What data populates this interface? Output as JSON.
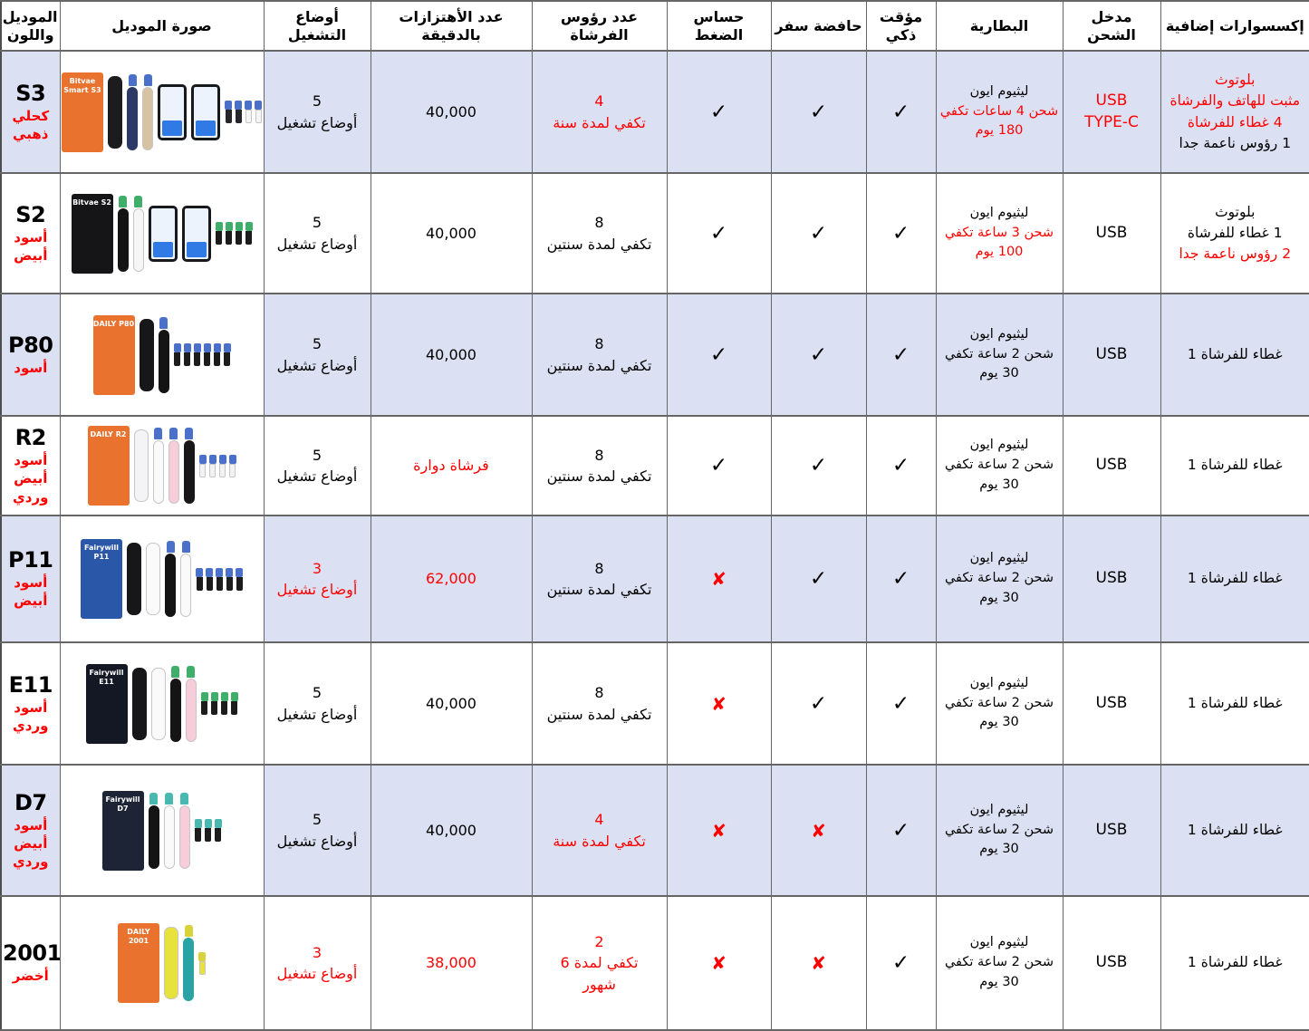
{
  "colors": {
    "red": "#ff0000",
    "row_shade": "#dbe1f2",
    "border": "#666666",
    "header_bg": "#ffffff",
    "check": "#000000"
  },
  "symbols": {
    "yes": "✓",
    "no": "✘"
  },
  "table": {
    "headers": [
      {
        "key": "model",
        "label": "الموديل واللون"
      },
      {
        "key": "image",
        "label": "صورة الموديل"
      },
      {
        "key": "modes",
        "label": "أوضاع التشغيل"
      },
      {
        "key": "vibrations",
        "label": "عدد الأهتزازات بالدقيقة"
      },
      {
        "key": "heads",
        "label": "عدد رؤوس الفرشاة"
      },
      {
        "key": "pressure",
        "label": "حساس الضغط"
      },
      {
        "key": "travel",
        "label": "حافضة سفر"
      },
      {
        "key": "timer",
        "label": "مؤقت ذكي"
      },
      {
        "key": "battery",
        "label": "البطارية"
      },
      {
        "key": "port",
        "label": "مدخل الشحن"
      },
      {
        "key": "accessories",
        "label": "إكسسوارات إضافية"
      }
    ],
    "rows": [
      {
        "model": {
          "name": "S3",
          "colors": [
            "كحلي",
            "ذهبي"
          ]
        },
        "image": {
          "box": {
            "bg": "#e8722e",
            "label": "Bitvae Smart S3"
          },
          "cases": [
            "#1c1c1e"
          ],
          "brushes": [
            "#2d3a66",
            "#d7c3a1"
          ],
          "phones": 2,
          "bristle": "#4a70c9",
          "heads": [
            "#26262a",
            "#26262a",
            "#f5f5f5",
            "#f5f5f5"
          ]
        },
        "modes": [
          {
            "t": "5"
          },
          {
            "t": "أوضاع تشغيل"
          }
        ],
        "vibrations": [
          {
            "t": "40,000"
          }
        ],
        "heads": [
          {
            "t": "4",
            "c": "r"
          },
          {
            "t": "تكفي لمدة سنة",
            "c": "r"
          }
        ],
        "pressure": "yes",
        "travel": "yes",
        "timer": "yes",
        "battery": [
          {
            "t": "ليثيوم ايون"
          },
          {
            "t": "شحن 4 ساعات تكفي",
            "c": "r"
          },
          {
            "t": "180 يوم",
            "c": "r"
          }
        ],
        "port": [
          {
            "t": "USB",
            "c": "r"
          },
          {
            "t": "TYPE-C",
            "c": "r"
          }
        ],
        "accessories": [
          {
            "t": "بلوتوث",
            "c": "r"
          },
          {
            "t": "مثبت للهاتف والفرشاة",
            "c": "r"
          },
          {
            "t": "4 غطاء للفرشاة",
            "c": "r"
          },
          {
            "t": "1 رؤوس ناعمة جدا"
          }
        ]
      },
      {
        "model": {
          "name": "S2",
          "colors": [
            "أسود",
            "أبيض"
          ]
        },
        "image": {
          "box": {
            "bg": "#151517",
            "label": "Bitvae S2"
          },
          "cases": [],
          "brushes": [
            "#141414",
            "#f6f6f6"
          ],
          "phones": 2,
          "bristle": "#3fae6a",
          "heads": [
            "#1c1c1c",
            "#1c1c1c",
            "#1c1c1c",
            "#1c1c1c"
          ]
        },
        "modes": [
          {
            "t": "5"
          },
          {
            "t": "أوضاع تشغيل"
          }
        ],
        "vibrations": [
          {
            "t": "40,000"
          }
        ],
        "heads": [
          {
            "t": "8"
          },
          {
            "t": "تكفي لمدة سنتين"
          }
        ],
        "pressure": "yes",
        "travel": "yes",
        "timer": "yes",
        "battery": [
          {
            "t": "ليثيوم ايون"
          },
          {
            "t": "شحن 3 ساعة تكفي",
            "c": "r"
          },
          {
            "t": "100 يوم",
            "c": "r"
          }
        ],
        "port": [
          {
            "t": "USB"
          }
        ],
        "accessories": [
          {
            "t": "بلوتوث"
          },
          {
            "t": "1 غطاء للفرشاة"
          },
          {
            "t": "2 رؤوس ناعمة جدا",
            "c": "r"
          }
        ]
      },
      {
        "model": {
          "name": "P80",
          "colors": [
            "أسود"
          ]
        },
        "image": {
          "box": {
            "bg": "#e8722e",
            "label": "DAILY P80"
          },
          "cases": [
            "#17171a"
          ],
          "brushes": [
            "#141414"
          ],
          "phones": 0,
          "bristle": "#4a70c9",
          "heads": [
            "#1c1c1c",
            "#1c1c1c",
            "#1c1c1c",
            "#1c1c1c",
            "#1c1c1c",
            "#1c1c1c"
          ]
        },
        "modes": [
          {
            "t": "5"
          },
          {
            "t": "أوضاع تشغيل"
          }
        ],
        "vibrations": [
          {
            "t": "40,000"
          }
        ],
        "heads": [
          {
            "t": "8"
          },
          {
            "t": "تكفي لمدة سنتين"
          }
        ],
        "pressure": "yes",
        "travel": "yes",
        "timer": "yes",
        "battery": [
          {
            "t": "ليثيوم ايون"
          },
          {
            "t": "شحن 2 ساعة تكفي"
          },
          {
            "t": "30 يوم"
          }
        ],
        "port": [
          {
            "t": "USB"
          }
        ],
        "accessories": [
          {
            "t": "غطاء للفرشاة 1"
          }
        ]
      },
      {
        "model": {
          "name": "R2",
          "colors": [
            "أسود",
            "أبيض",
            "وردي"
          ]
        },
        "image": {
          "box": {
            "bg": "#e8722e",
            "label": "DAILY R2"
          },
          "cases": [
            "#f4f4f6"
          ],
          "brushes": [
            "#fafafa",
            "#f6cdd8",
            "#17171a"
          ],
          "phones": 0,
          "bristle": "#4a70c9",
          "heads": [
            "#f2f2f2",
            "#f2f2f2",
            "#f2f2f2",
            "#f2f2f2"
          ]
        },
        "modes": [
          {
            "t": "5"
          },
          {
            "t": "أوضاع تشغيل"
          }
        ],
        "vibrations": [
          {
            "t": "فرشاة دوارة",
            "c": "r"
          }
        ],
        "heads": [
          {
            "t": "8"
          },
          {
            "t": "تكفي لمدة سنتين"
          }
        ],
        "pressure": "yes",
        "travel": "yes",
        "timer": "yes",
        "battery": [
          {
            "t": "ليثيوم ايون"
          },
          {
            "t": "شحن 2 ساعة تكفي"
          },
          {
            "t": "30 يوم"
          }
        ],
        "port": [
          {
            "t": "USB"
          }
        ],
        "accessories": [
          {
            "t": "غطاء للفرشاة 1"
          }
        ]
      },
      {
        "model": {
          "name": "P11",
          "colors": [
            "أسود",
            "أبيض"
          ]
        },
        "image": {
          "box": {
            "bg": "#2b57a8",
            "label": "Fairywill P11"
          },
          "cases": [
            "#17171a",
            "#fafafa"
          ],
          "brushes": [
            "#141414",
            "#fafafa"
          ],
          "phones": 0,
          "bristle": "#4a70c9",
          "heads": [
            "#1c1c1c",
            "#1c1c1c",
            "#1c1c1c",
            "#1c1c1c",
            "#1c1c1c"
          ]
        },
        "modes": [
          {
            "t": "3",
            "c": "r"
          },
          {
            "t": "أوضاع تشغيل",
            "c": "r"
          }
        ],
        "vibrations": [
          {
            "t": "62,000",
            "c": "r"
          }
        ],
        "heads": [
          {
            "t": "8"
          },
          {
            "t": "تكفي لمدة سنتين"
          }
        ],
        "pressure": "no",
        "travel": "yes",
        "timer": "yes",
        "battery": [
          {
            "t": "ليثيوم ايون"
          },
          {
            "t": "شحن 2 ساعة تكفي"
          },
          {
            "t": "30 يوم"
          }
        ],
        "port": [
          {
            "t": "USB"
          }
        ],
        "accessories": [
          {
            "t": "غطاء للفرشاة 1"
          }
        ]
      },
      {
        "model": {
          "name": "E11",
          "colors": [
            "أسود",
            "وردي"
          ]
        },
        "image": {
          "box": {
            "bg": "#141824",
            "label": "Fairywill E11"
          },
          "cases": [
            "#17171a",
            "#fafafa"
          ],
          "brushes": [
            "#141414",
            "#f6cdd8"
          ],
          "phones": 0,
          "bristle": "#3fae6a",
          "heads": [
            "#1c1c1c",
            "#1c1c1c",
            "#1c1c1c",
            "#1c1c1c"
          ]
        },
        "modes": [
          {
            "t": "5"
          },
          {
            "t": "أوضاع تشغيل"
          }
        ],
        "vibrations": [
          {
            "t": "40,000"
          }
        ],
        "heads": [
          {
            "t": "8"
          },
          {
            "t": "تكفي لمدة سنتين"
          }
        ],
        "pressure": "no",
        "travel": "yes",
        "timer": "yes",
        "battery": [
          {
            "t": "ليثيوم ايون"
          },
          {
            "t": "شحن 2 ساعة تكفي"
          },
          {
            "t": "30 يوم"
          }
        ],
        "port": [
          {
            "t": "USB"
          }
        ],
        "accessories": [
          {
            "t": "غطاء للفرشاة 1"
          }
        ]
      },
      {
        "model": {
          "name": "D7",
          "colors": [
            "أسود",
            "أبيض",
            "وردي"
          ]
        },
        "image": {
          "box": {
            "bg": "#1c2436",
            "label": "Fairywill D7"
          },
          "cases": [],
          "brushes": [
            "#141414",
            "#fafafa",
            "#f6cdd8"
          ],
          "phones": 0,
          "bristle": "#49b8b0",
          "heads": [
            "#1c1c1c",
            "#1c1c1c",
            "#1c1c1c"
          ]
        },
        "modes": [
          {
            "t": "5"
          },
          {
            "t": "أوضاع تشغيل"
          }
        ],
        "vibrations": [
          {
            "t": "40,000"
          }
        ],
        "heads": [
          {
            "t": "4",
            "c": "r"
          },
          {
            "t": "تكفي لمدة سنة",
            "c": "r"
          }
        ],
        "pressure": "no",
        "travel": "no",
        "timer": "yes",
        "battery": [
          {
            "t": "ليثيوم ايون"
          },
          {
            "t": "شحن 2 ساعة تكفي"
          },
          {
            "t": "30 يوم"
          }
        ],
        "port": [
          {
            "t": "USB"
          }
        ],
        "accessories": [
          {
            "t": "غطاء للفرشاة 1"
          }
        ]
      },
      {
        "model": {
          "name": "2001",
          "colors": [
            "أخضر"
          ]
        },
        "image": {
          "box": {
            "bg": "#e8722e",
            "label": "DAILY 2001"
          },
          "cases": [
            "#e8e23c"
          ],
          "brushes": [
            "#2aa3a5"
          ],
          "phones": 0,
          "bristle": "#d8d33a",
          "heads": [
            "#e8e23c"
          ]
        },
        "modes": [
          {
            "t": "3",
            "c": "r"
          },
          {
            "t": "أوضاع تشغيل",
            "c": "r"
          }
        ],
        "vibrations": [
          {
            "t": "38,000",
            "c": "r"
          }
        ],
        "heads": [
          {
            "t": "2",
            "c": "r"
          },
          {
            "t": "تكفي لمدة 6",
            "c": "r"
          },
          {
            "t": "شهور",
            "c": "r"
          }
        ],
        "pressure": "no",
        "travel": "no",
        "timer": "yes",
        "battery": [
          {
            "t": "ليثيوم ايون"
          },
          {
            "t": "شحن 2 ساعة تكفي"
          },
          {
            "t": "30 يوم"
          }
        ],
        "port": [
          {
            "t": "USB"
          }
        ],
        "accessories": [
          {
            "t": "غطاء للفرشاة 1"
          }
        ]
      }
    ]
  },
  "chart_data": {
    "type": "table",
    "columns": [
      "الموديل واللون",
      "صورة الموديل",
      "أوضاع التشغيل",
      "عدد الأهتزازات بالدقيقة",
      "عدد رؤوس الفرشاة",
      "حساس الضغط",
      "حافضة سفر",
      "مؤقت ذكي",
      "البطارية",
      "مدخل الشحن",
      "إكسسوارات إضافية"
    ],
    "rows": [
      [
        "S3 كحلي ذهبي",
        "صورة المنتج",
        "5 أوضاع تشغيل",
        "40,000",
        "4 تكفي لمدة سنة",
        "✓",
        "✓",
        "✓",
        "ليثيوم ايون شحن 4 ساعات تكفي 180 يوم",
        "USB TYPE-C",
        "بلوتوث، مثبت للهاتف والفرشاة، 4 غطاء للفرشاة، 1 رؤوس ناعمة جدا"
      ],
      [
        "S2 أسود أبيض",
        "صورة المنتج",
        "5 أوضاع تشغيل",
        "40,000",
        "8 تكفي لمدة سنتين",
        "✓",
        "✓",
        "✓",
        "ليثيوم ايون شحن 3 ساعة تكفي 100 يوم",
        "USB",
        "بلوتوث، 1 غطاء للفرشاة، 2 رؤوس ناعمة جدا"
      ],
      [
        "P80 أسود",
        "صورة المنتج",
        "5 أوضاع تشغيل",
        "40,000",
        "8 تكفي لمدة سنتين",
        "✓",
        "✓",
        "✓",
        "ليثيوم ايون شحن 2 ساعة تكفي 30 يوم",
        "USB",
        "غطاء للفرشاة 1"
      ],
      [
        "R2 أسود أبيض وردي",
        "صورة المنتج",
        "5 أوضاع تشغيل",
        "فرشاة دوارة",
        "8 تكفي لمدة سنتين",
        "✓",
        "✓",
        "✓",
        "ليثيوم ايون شحن 2 ساعة تكفي 30 يوم",
        "USB",
        "غطاء للفرشاة 1"
      ],
      [
        "P11 أسود أبيض",
        "صورة المنتج",
        "3 أوضاع تشغيل",
        "62,000",
        "8 تكفي لمدة سنتين",
        "✘",
        "✓",
        "✓",
        "ليثيوم ايون شحن 2 ساعة تكفي 30 يوم",
        "USB",
        "غطاء للفرشاة 1"
      ],
      [
        "E11 أسود وردي",
        "صورة المنتج",
        "5 أوضاع تشغيل",
        "40,000",
        "8 تكفي لمدة سنتين",
        "✘",
        "✓",
        "✓",
        "ليثيوم ايون شحن 2 ساعة تكفي 30 يوم",
        "USB",
        "غطاء للفرشاة 1"
      ],
      [
        "D7 أسود أبيض وردي",
        "صورة المنتج",
        "5 أوضاع تشغيل",
        "40,000",
        "4 تكفي لمدة سنة",
        "✘",
        "✘",
        "✓",
        "ليثيوم ايون شحن 2 ساعة تكفي 30 يوم",
        "USB",
        "غطاء للفرشاة 1"
      ],
      [
        "2001 أخضر",
        "صورة المنتج",
        "3 أوضاع تشغيل",
        "38,000",
        "2 تكفي لمدة 6 شهور",
        "✘",
        "✘",
        "✓",
        "ليثيوم ايون شحن 2 ساعة تكفي 30 يوم",
        "USB",
        "غطاء للفرشاة 1"
      ]
    ]
  }
}
